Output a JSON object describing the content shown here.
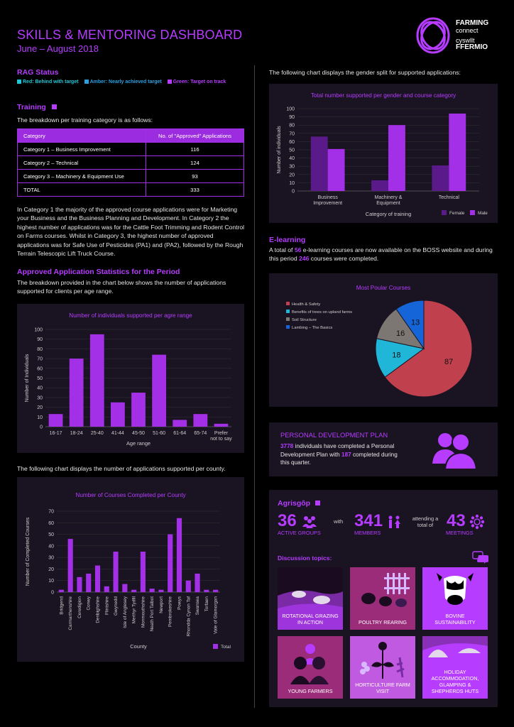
{
  "header": {
    "title": "SKILLS & MENTORING DASHBOARD",
    "subtitle": "June – August 2018",
    "logo_line1": "FARMING",
    "logo_line2": "connect",
    "logo_line3": "cyswllt",
    "logo_line4": "FFERMIO"
  },
  "rag": {
    "title": "RAG Status",
    "red": "Red: Behind with target",
    "amber": "Amber: Nearly achieved target",
    "green": "Green: Target on track",
    "colors": {
      "red": "#1ec7d6",
      "amber": "#2aa0e0",
      "green": "#b63cff"
    }
  },
  "training": {
    "title": "Training",
    "intro": "The breakdown per training category is as follows:",
    "table_headers": [
      "Category",
      "No. of \"Approved\" Applications"
    ],
    "rows": [
      [
        "Category 1 – Business Improvement",
        "116"
      ],
      [
        "Category 2 – Technical",
        "124"
      ],
      [
        "Category 3 – Machinery & Equipment Use",
        "93"
      ],
      [
        "TOTAL",
        "333"
      ]
    ],
    "paragraph": "In Category 1 the majority of the approved course applications were for Marketing your Business and the Business Planning and Development. In Category 2 the highest number of applications was for the Cattle Foot Trimming and Rodent Control on Farms courses. Whilst in Category 3, the highest number of approved applications was for Safe Use of Pesticides (PA1) and (PA2), followed by the Rough Terrain Telescopic Lift Truck Course."
  },
  "approved": {
    "title": "Approved Application Statistics for the Period",
    "text": "The breakdown provided in the chart below shows the number of applications supported for clients per age range."
  },
  "county_intro": "The following chart displays the number of applications supported per county.",
  "gender_intro": "The following chart displays the gender split for supported applications:",
  "elearning": {
    "title": "E-learning",
    "text_a": "A total of ",
    "courses_available": "56",
    "text_b": " e-learning courses are now available on the BOSS website and during this period ",
    "courses_completed": "246",
    "text_c": " courses were completed."
  },
  "pdp": {
    "title": "PERSONAL DEVELOPMENT PLAN",
    "count": "3778",
    "text_a": " individuals have completed a Personal Development Plan with ",
    "completed": "187",
    "text_b": " completed during this quarter."
  },
  "agrisgop": {
    "title": "Agrisgôp",
    "groups_num": "36",
    "groups_label": "ACTIVE GROUPS",
    "with": "with",
    "members_num": "341",
    "members_label": "MEMBERS",
    "attending": "attending a total of",
    "meetings_num": "43",
    "meetings_label": "MEETINGS",
    "discussion_title": "Discussion topics:",
    "topics": [
      "ROTATIONAL GRAZING IN ACTION",
      "POULTRY REARING",
      "BOVINE SUSTAINABILITY",
      "YOUNG FARMERS",
      "HORTICULTURE FARM VISIT",
      "HOLIDAY ACCOMMODATION, GLAMPING & SHEPHERDS HUTS"
    ]
  },
  "chart_data": [
    {
      "type": "bar",
      "title": "Number of individuals supported per agre range",
      "xlabel": "Age range",
      "ylabel": "Number of Individuals",
      "ylim": [
        0,
        100
      ],
      "yticks": [
        0,
        10,
        20,
        30,
        40,
        50,
        60,
        70,
        80,
        90,
        100
      ],
      "categories": [
        "16-17",
        "18-24",
        "25-40",
        "41-44",
        "45-50",
        "51-60",
        "61-64",
        "65-74",
        "Prefer not to say"
      ],
      "values": [
        13,
        70,
        95,
        25,
        35,
        74,
        7,
        13,
        3
      ],
      "color": "#a32fe6"
    },
    {
      "type": "bar",
      "title": "Number of Courses Completed per County",
      "xlabel": "County",
      "ylabel": "Number of Completed Courses",
      "ylim": [
        0,
        70
      ],
      "yticks": [
        0,
        10,
        20,
        30,
        40,
        50,
        60,
        70
      ],
      "categories": [
        "Bridgend",
        "Carmarthenshire",
        "Ceredigion",
        "Conwy",
        "Denbighshire",
        "Flintshire",
        "Gwynedd",
        "Isle of Anglesey",
        "Merthyr Tydfil",
        "Monmouthshire",
        "Neath Port Talbot",
        "Newport",
        "Pembrokeshire",
        "Powys",
        "Rhondda Cynon Taf",
        "Swansea",
        "Torfaen",
        "Vale of Glamorgan"
      ],
      "series": [
        {
          "name": "Total",
          "values": [
            2,
            46,
            13,
            16,
            23,
            5,
            35,
            7,
            2,
            35,
            3,
            2,
            50,
            64,
            10,
            16,
            2,
            2
          ]
        }
      ],
      "color": "#a32fe6"
    },
    {
      "type": "bar",
      "title": "Total number supported per gender and course category",
      "xlabel": "Category of training",
      "ylabel": "Number of individuals",
      "ylim": [
        0,
        100
      ],
      "yticks": [
        0,
        10,
        20,
        30,
        40,
        50,
        60,
        70,
        80,
        90,
        100
      ],
      "categories": [
        "Business Improvement",
        "Machinery & Equipment",
        "Technical"
      ],
      "series": [
        {
          "name": "Female",
          "values": [
            66,
            13,
            31
          ],
          "color": "#5a1a8a"
        },
        {
          "name": "Male",
          "values": [
            51,
            80,
            94
          ],
          "color": "#a32fe6"
        }
      ]
    },
    {
      "type": "pie",
      "title": "Most Poular Courses",
      "labels": [
        "Health & Safety",
        "Benefits of trees on upland farms",
        "Soil Structure",
        "Lambing – The Basics"
      ],
      "values": [
        87,
        18,
        16,
        13
      ],
      "colors": [
        "#c0404e",
        "#1fb6d8",
        "#7d7774",
        "#1565d8"
      ]
    }
  ]
}
